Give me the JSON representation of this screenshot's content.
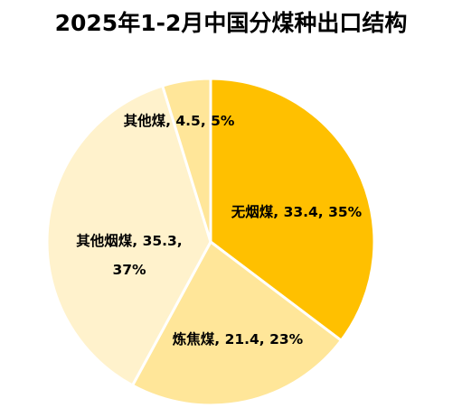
{
  "title": "2025年1-2月中国分煤种出口结构",
  "chart_data": {
    "type": "pie",
    "title": "2025年1-2月中国分煤种出口结构",
    "slices": [
      {
        "name": "无烟煤",
        "value": 33.4,
        "percent": "35%",
        "color": "#FFC000",
        "label": "无烟煤, 33.4, 35%"
      },
      {
        "name": "炼焦煤",
        "value": 21.4,
        "percent": "23%",
        "color": "#FFE699",
        "label": "炼焦煤, 21.4, 23%"
      },
      {
        "name": "其他烟煤",
        "value": 35.3,
        "percent": "37%",
        "color": "#FFF2CC",
        "label_lines": [
          "其他烟煤, 35.3,",
          "37%"
        ]
      },
      {
        "name": "其他煤",
        "value": 4.5,
        "percent": "5%",
        "color": "#FFE699",
        "label": "其他煤, 4.5, 5%"
      }
    ]
  }
}
